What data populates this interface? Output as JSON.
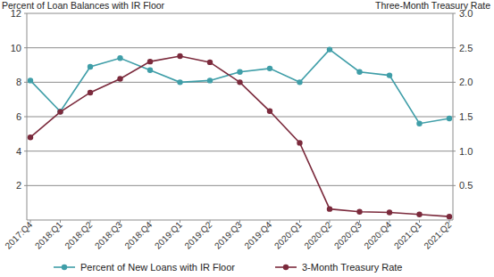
{
  "chart_data": {
    "type": "line",
    "ylabel": "Percent of Loan Balances with IR Floor",
    "y2label": "Three-Month Treasury Rate",
    "categories": [
      "2017:Q4",
      "2018:Q1",
      "2018:Q2",
      "2018:Q3",
      "2018:Q4",
      "2019:Q1",
      "2019:Q2",
      "2019:Q3",
      "2019:Q4",
      "2020:Q1",
      "2020:Q2",
      "2020:Q3",
      "2020:Q4",
      "2021:Q1",
      "2021:Q2"
    ],
    "series": [
      {
        "name": "Percent of New Loans with IR Floor",
        "color": "#3f9ea8",
        "marker": "circle",
        "values": [
          8.1,
          6.3,
          8.9,
          9.4,
          8.7,
          8.0,
          8.1,
          8.6,
          8.8,
          8.0,
          9.9,
          8.6,
          8.4,
          5.6,
          5.9
        ]
      },
      {
        "name": "3-Month Treasury Rate",
        "color": "#7b2a3c",
        "marker": "circle",
        "axis": "y2",
        "values": [
          1.2,
          1.57,
          1.85,
          2.05,
          2.3,
          2.38,
          2.29,
          2.0,
          1.58,
          1.12,
          0.16,
          0.12,
          0.11,
          0.08,
          0.05
        ]
      }
    ],
    "ylim": [
      0,
      12
    ],
    "yticks": [
      2,
      4,
      6,
      8,
      10,
      12
    ],
    "y2lim": [
      0,
      3
    ],
    "y2ticks": [
      0.5,
      {
        "value": 1,
        "label": "1.0"
      },
      1.5,
      {
        "value": 2,
        "label": "2.0"
      },
      2.5,
      {
        "value": 3,
        "label": "3.0"
      }
    ],
    "grid": true,
    "legend": "bottom"
  }
}
